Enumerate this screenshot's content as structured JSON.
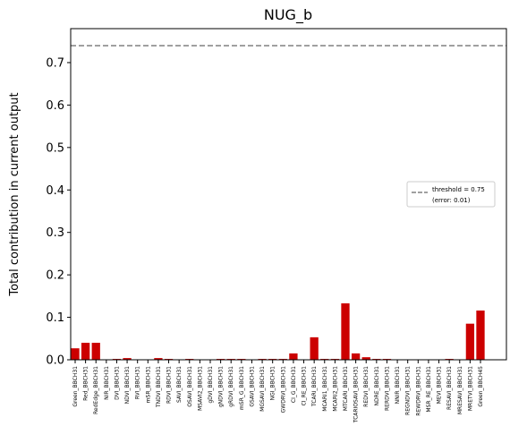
{
  "chart_data": {
    "type": "bar",
    "title": "NUG_b",
    "xlabel": "",
    "ylabel": "Total contribution in current output",
    "ylim": [
      0,
      0.78
    ],
    "yticks": [
      "0.0",
      "0.1",
      "0.2",
      "0.3",
      "0.4",
      "0.5",
      "0.6",
      "0.7"
    ],
    "grid": false,
    "legend_position": "center-right",
    "threshold": {
      "value": 0.74,
      "label": "threshold = 0.75",
      "sublabel": "(error: 0.01)",
      "color": "#808080"
    },
    "bar_color": "#cc0000",
    "categories": [
      "Green_BBCH31",
      "Red_BBCH31",
      "RedEdge_BBCH31",
      "NIR_BBCH31",
      "DVI_BBCH31",
      "NDVI_BBCH31",
      "RVI_BBCH31",
      "mSR_BBCH31",
      "TNDVI_BBCH31",
      "RDVI_BBCH31",
      "SAVI_BBCH31",
      "OSAVI_BBCH31",
      "MSAVI2_BBCH31",
      "gDVI_BBCH31",
      "gNDVI_BBCH31",
      "gRDVI_BBCH31",
      "mSR_G_BBCH31",
      "GSAVI_BBCH31",
      "MGSAVI_BBCH31",
      "NGI_BBCH31",
      "GWDRVI_BBCH31",
      "CI_G_BBCH31",
      "CI_RE_BBCH31",
      "TCARI_BBCH31",
      "MCARI1_BBCH31",
      "MCARI2_BBCH31",
      "MTCARI_BBCH31",
      "TCARIOSAVI_BBCH31",
      "REDVI_BBCH31",
      "NDRE_BBCH31",
      "RERDVI_BBCH31",
      "NNIR_BBCH31",
      "REGNDVI_BBCH31",
      "REWDRVI_BBCH31",
      "MSR_RE_BBCH31",
      "MEVI_BBCH31",
      "RESAVI_BBCH31",
      "MRESAVI_BBCH31",
      "MRETVI_BBCH31",
      "Green_BBCH45"
    ],
    "values": [
      0.027,
      0.04,
      0.04,
      0.0,
      0.002,
      0.004,
      0.0,
      0.0,
      0.004,
      0.002,
      0.0,
      0.002,
      0.0,
      0.0,
      0.002,
      0.002,
      0.002,
      0.0,
      0.002,
      0.002,
      0.002,
      0.015,
      0.0,
      0.053,
      0.002,
      0.002,
      0.133,
      0.015,
      0.006,
      0.002,
      0.002,
      0.0,
      0.0,
      0.0,
      0.0,
      0.0,
      0.002,
      0.0,
      0.085,
      0.116
    ]
  }
}
